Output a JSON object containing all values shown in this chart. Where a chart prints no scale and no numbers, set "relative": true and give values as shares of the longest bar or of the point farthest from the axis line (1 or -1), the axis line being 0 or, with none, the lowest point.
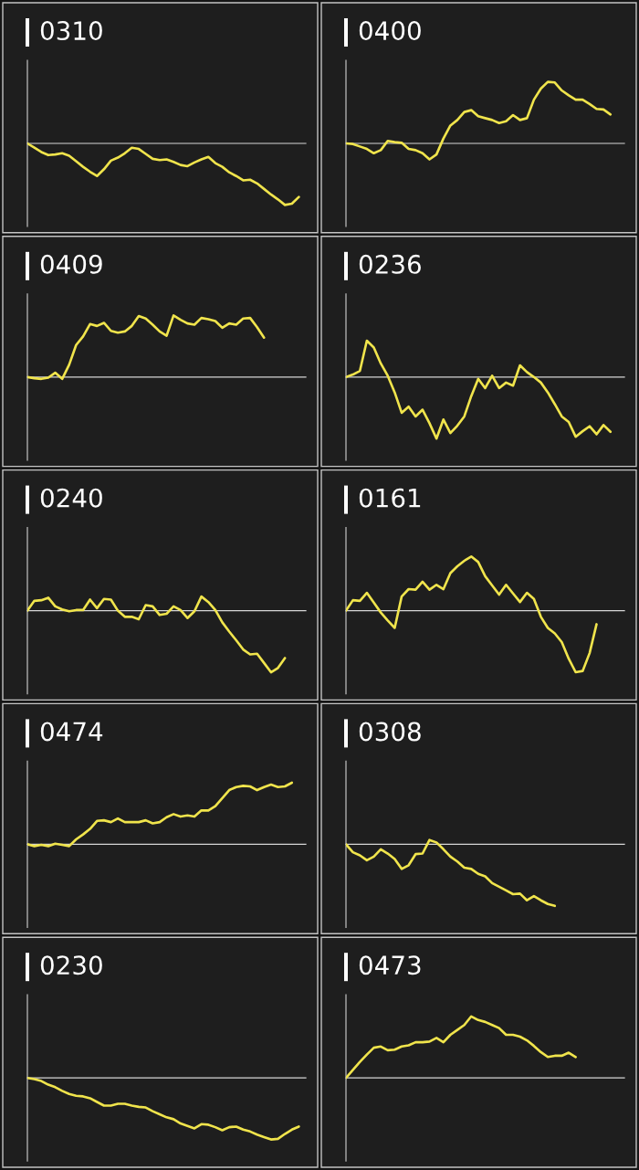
{
  "chart_data": [
    {
      "type": "line",
      "title": "0310",
      "relative": true,
      "categories": [
        null,
        null,
        null,
        null,
        null,
        null,
        null,
        null,
        null,
        null,
        null,
        null,
        null,
        null,
        null,
        null,
        null,
        null,
        null,
        null,
        null,
        null,
        null,
        null,
        null,
        null,
        null,
        null,
        null,
        null,
        null,
        null,
        null,
        null,
        null,
        null,
        null,
        null,
        null,
        null,
        null
      ],
      "series": [
        {
          "color": "#f0e44c",
          "values": [
            0,
            -0.07,
            -0.14,
            -0.19,
            -0.18,
            -0.16,
            -0.2,
            -0.29,
            -0.38,
            -0.46,
            -0.53,
            -0.42,
            -0.28,
            -0.23,
            -0.16,
            -0.07,
            -0.09,
            -0.17,
            -0.25,
            -0.27,
            -0.26,
            -0.3,
            -0.35,
            -0.37,
            -0.31,
            -0.26,
            -0.22,
            -0.32,
            -0.38,
            -0.47,
            -0.53,
            -0.6,
            -0.59,
            -0.65,
            -0.74,
            -0.83,
            -0.91,
            -1,
            -0.98,
            -0.87,
            null
          ]
        }
      ]
    },
    {
      "type": "line",
      "title": "0400",
      "relative": true,
      "categories": [
        null,
        null,
        null,
        null,
        null,
        null,
        null,
        null,
        null,
        null,
        null,
        null,
        null,
        null,
        null,
        null,
        null,
        null,
        null,
        null,
        null,
        null,
        null,
        null,
        null,
        null,
        null,
        null,
        null,
        null,
        null,
        null,
        null,
        null,
        null,
        null,
        null,
        null,
        null,
        null,
        null
      ],
      "series": [
        {
          "color": "#f0e44c",
          "values": [
            0,
            -0.01,
            -0.05,
            -0.09,
            -0.16,
            -0.11,
            0.04,
            0.02,
            0.01,
            -0.09,
            -0.11,
            -0.16,
            -0.26,
            -0.18,
            0.08,
            0.29,
            0.38,
            0.51,
            0.54,
            0.44,
            0.41,
            0.38,
            0.33,
            0.36,
            0.46,
            0.38,
            0.41,
            0.71,
            0.89,
            1,
            0.99,
            0.86,
            0.78,
            0.71,
            0.71,
            0.64,
            0.56,
            0.55,
            0.47,
            null,
            null
          ]
        }
      ]
    },
    {
      "type": "line",
      "title": "0409",
      "relative": true,
      "categories": [
        null,
        null,
        null,
        null,
        null,
        null,
        null,
        null,
        null,
        null,
        null,
        null,
        null,
        null,
        null,
        null,
        null,
        null,
        null,
        null,
        null,
        null,
        null,
        null,
        null,
        null,
        null,
        null,
        null,
        null,
        null,
        null,
        null,
        null,
        null,
        null,
        null,
        null,
        null,
        null,
        null
      ],
      "series": [
        {
          "color": "#f0e44c",
          "values": [
            0,
            -0.02,
            -0.03,
            -0.01,
            0.07,
            -0.03,
            0.2,
            0.52,
            0.66,
            0.86,
            0.83,
            0.88,
            0.75,
            0.72,
            0.74,
            0.83,
            0.99,
            0.95,
            0.85,
            0.74,
            0.67,
            1,
            0.93,
            0.87,
            0.85,
            0.96,
            0.94,
            0.91,
            0.8,
            0.87,
            0.85,
            0.95,
            0.96,
            0.81,
            0.64,
            null,
            null,
            null,
            null,
            null,
            null
          ]
        }
      ]
    },
    {
      "type": "line",
      "title": "0236",
      "relative": true,
      "categories": [
        null,
        null,
        null,
        null,
        null,
        null,
        null,
        null,
        null,
        null,
        null,
        null,
        null,
        null,
        null,
        null,
        null,
        null,
        null,
        null,
        null,
        null,
        null,
        null,
        null,
        null,
        null,
        null,
        null,
        null,
        null,
        null,
        null,
        null,
        null,
        null,
        null,
        null,
        null,
        null,
        null
      ],
      "series": [
        {
          "color": "#f0e44c",
          "values": [
            0,
            0.04,
            0.1,
            0.59,
            0.48,
            0.22,
            0.02,
            -0.25,
            -0.58,
            -0.48,
            -0.64,
            -0.53,
            -0.75,
            -1,
            -0.69,
            -0.91,
            -0.79,
            -0.64,
            -0.31,
            -0.03,
            -0.18,
            0.02,
            -0.18,
            -0.09,
            -0.14,
            0.19,
            0.08,
            0,
            -0.09,
            -0.25,
            -0.44,
            -0.64,
            -0.73,
            -0.97,
            -0.88,
            -0.8,
            -0.93,
            -0.78,
            -0.89,
            null,
            null
          ]
        }
      ]
    },
    {
      "type": "line",
      "title": "0240",
      "relative": true,
      "categories": [
        null,
        null,
        null,
        null,
        null,
        null,
        null,
        null,
        null,
        null,
        null,
        null,
        null,
        null,
        null,
        null,
        null,
        null,
        null,
        null,
        null,
        null,
        null,
        null,
        null,
        null,
        null,
        null,
        null,
        null,
        null,
        null,
        null,
        null,
        null,
        null,
        null,
        null,
        null,
        null,
        null
      ],
      "series": [
        {
          "color": "#f0e44c",
          "values": [
            0,
            0.16,
            0.17,
            0.21,
            0.07,
            0.02,
            -0.01,
            0.01,
            0.01,
            0.18,
            0.04,
            0.19,
            0.18,
            0,
            -0.1,
            -0.1,
            -0.14,
            0.09,
            0.07,
            -0.07,
            -0.05,
            0.07,
            0.01,
            -0.12,
            -0.01,
            0.23,
            0.14,
            0.01,
            -0.19,
            -0.34,
            -0.48,
            -0.63,
            -0.71,
            -0.7,
            -0.85,
            -1,
            -0.93,
            -0.77,
            null,
            null,
            null
          ]
        }
      ]
    },
    {
      "type": "line",
      "title": "0161",
      "relative": true,
      "categories": [
        null,
        null,
        null,
        null,
        null,
        null,
        null,
        null,
        null,
        null,
        null,
        null,
        null,
        null,
        null,
        null,
        null,
        null,
        null,
        null,
        null,
        null,
        null,
        null,
        null,
        null,
        null,
        null,
        null,
        null,
        null,
        null,
        null,
        null,
        null,
        null,
        null,
        null,
        null,
        null,
        null
      ],
      "series": [
        {
          "color": "#f0e44c",
          "values": [
            0,
            0.17,
            0.16,
            0.29,
            0.13,
            -0.03,
            -0.16,
            -0.28,
            0.23,
            0.35,
            0.34,
            0.47,
            0.34,
            0.42,
            0.35,
            0.61,
            0.72,
            0.81,
            0.88,
            0.79,
            0.56,
            0.41,
            0.26,
            0.42,
            0.28,
            0.14,
            0.29,
            0.19,
            -0.1,
            -0.28,
            -0.37,
            -0.51,
            -0.78,
            -1,
            -0.98,
            -0.69,
            -0.22,
            null,
            null,
            null,
            null
          ]
        }
      ]
    },
    {
      "type": "line",
      "title": "0474",
      "relative": true,
      "categories": [
        null,
        null,
        null,
        null,
        null,
        null,
        null,
        null,
        null,
        null,
        null,
        null,
        null,
        null,
        null,
        null,
        null,
        null,
        null,
        null,
        null,
        null,
        null,
        null,
        null,
        null,
        null,
        null,
        null,
        null,
        null,
        null,
        null,
        null,
        null,
        null,
        null,
        null,
        null,
        null,
        null
      ],
      "series": [
        {
          "color": "#f0e44c",
          "values": [
            0,
            -0.03,
            -0.01,
            -0.03,
            0.01,
            -0.01,
            -0.03,
            0.08,
            0.16,
            0.25,
            0.38,
            0.39,
            0.36,
            0.42,
            0.36,
            0.36,
            0.36,
            0.39,
            0.34,
            0.36,
            0.44,
            0.49,
            0.45,
            0.47,
            0.45,
            0.55,
            0.55,
            0.62,
            0.75,
            0.88,
            0.93,
            0.95,
            0.94,
            0.88,
            0.93,
            0.97,
            0.93,
            0.94,
            1,
            null,
            null
          ]
        }
      ]
    },
    {
      "type": "line",
      "title": "0308",
      "relative": true,
      "categories": [
        null,
        null,
        null,
        null,
        null,
        null,
        null,
        null,
        null,
        null,
        null,
        null,
        null,
        null,
        null,
        null,
        null,
        null,
        null,
        null,
        null,
        null,
        null,
        null,
        null,
        null,
        null,
        null,
        null,
        null,
        null,
        null,
        null,
        null,
        null,
        null,
        null,
        null,
        null,
        null,
        null
      ],
      "series": [
        {
          "color": "#f0e44c",
          "values": [
            0,
            -0.13,
            -0.18,
            -0.26,
            -0.2,
            -0.08,
            -0.15,
            -0.24,
            -0.4,
            -0.34,
            -0.16,
            -0.15,
            0.07,
            0.03,
            -0.08,
            -0.2,
            -0.28,
            -0.38,
            -0.4,
            -0.48,
            -0.52,
            -0.63,
            -0.69,
            -0.75,
            -0.81,
            -0.8,
            -0.91,
            -0.84,
            -0.91,
            -0.97,
            -1,
            null,
            null,
            null,
            null,
            null,
            null,
            null,
            null,
            null,
            null
          ]
        }
      ]
    },
    {
      "type": "line",
      "title": "0230",
      "relative": true,
      "categories": [
        null,
        null,
        null,
        null,
        null,
        null,
        null,
        null,
        null,
        null,
        null,
        null,
        null,
        null,
        null,
        null,
        null,
        null,
        null,
        null,
        null,
        null,
        null,
        null,
        null,
        null,
        null,
        null,
        null,
        null,
        null,
        null,
        null,
        null,
        null,
        null,
        null,
        null,
        null,
        null,
        null
      ],
      "series": [
        {
          "color": "#f0e44c",
          "values": [
            0,
            -0.02,
            -0.05,
            -0.11,
            -0.15,
            -0.21,
            -0.26,
            -0.29,
            -0.3,
            -0.33,
            -0.39,
            -0.45,
            -0.45,
            -0.42,
            -0.42,
            -0.45,
            -0.47,
            -0.48,
            -0.54,
            -0.59,
            -0.64,
            -0.67,
            -0.74,
            -0.78,
            -0.82,
            -0.75,
            -0.76,
            -0.8,
            -0.85,
            -0.8,
            -0.79,
            -0.84,
            -0.87,
            -0.92,
            -0.96,
            -1,
            -0.99,
            -0.91,
            -0.84,
            -0.79,
            null
          ]
        }
      ]
    },
    {
      "type": "line",
      "title": "0473",
      "relative": true,
      "categories": [
        null,
        null,
        null,
        null,
        null,
        null,
        null,
        null,
        null,
        null,
        null,
        null,
        null,
        null,
        null,
        null,
        null,
        null,
        null,
        null,
        null,
        null,
        null,
        null,
        null,
        null,
        null,
        null,
        null,
        null,
        null,
        null,
        null,
        null,
        null,
        null,
        null,
        null,
        null,
        null,
        null
      ],
      "series": [
        {
          "color": "#f0e44c",
          "values": [
            0,
            0.13,
            0.26,
            0.38,
            0.49,
            0.51,
            0.45,
            0.46,
            0.51,
            0.53,
            0.58,
            0.58,
            0.59,
            0.65,
            0.58,
            0.7,
            0.78,
            0.86,
            1,
            0.94,
            0.91,
            0.86,
            0.81,
            0.7,
            0.7,
            0.67,
            0.61,
            0.52,
            0.42,
            0.34,
            0.36,
            0.36,
            0.41,
            0.34,
            null,
            null,
            null,
            null,
            null,
            null,
            null
          ]
        }
      ]
    }
  ]
}
